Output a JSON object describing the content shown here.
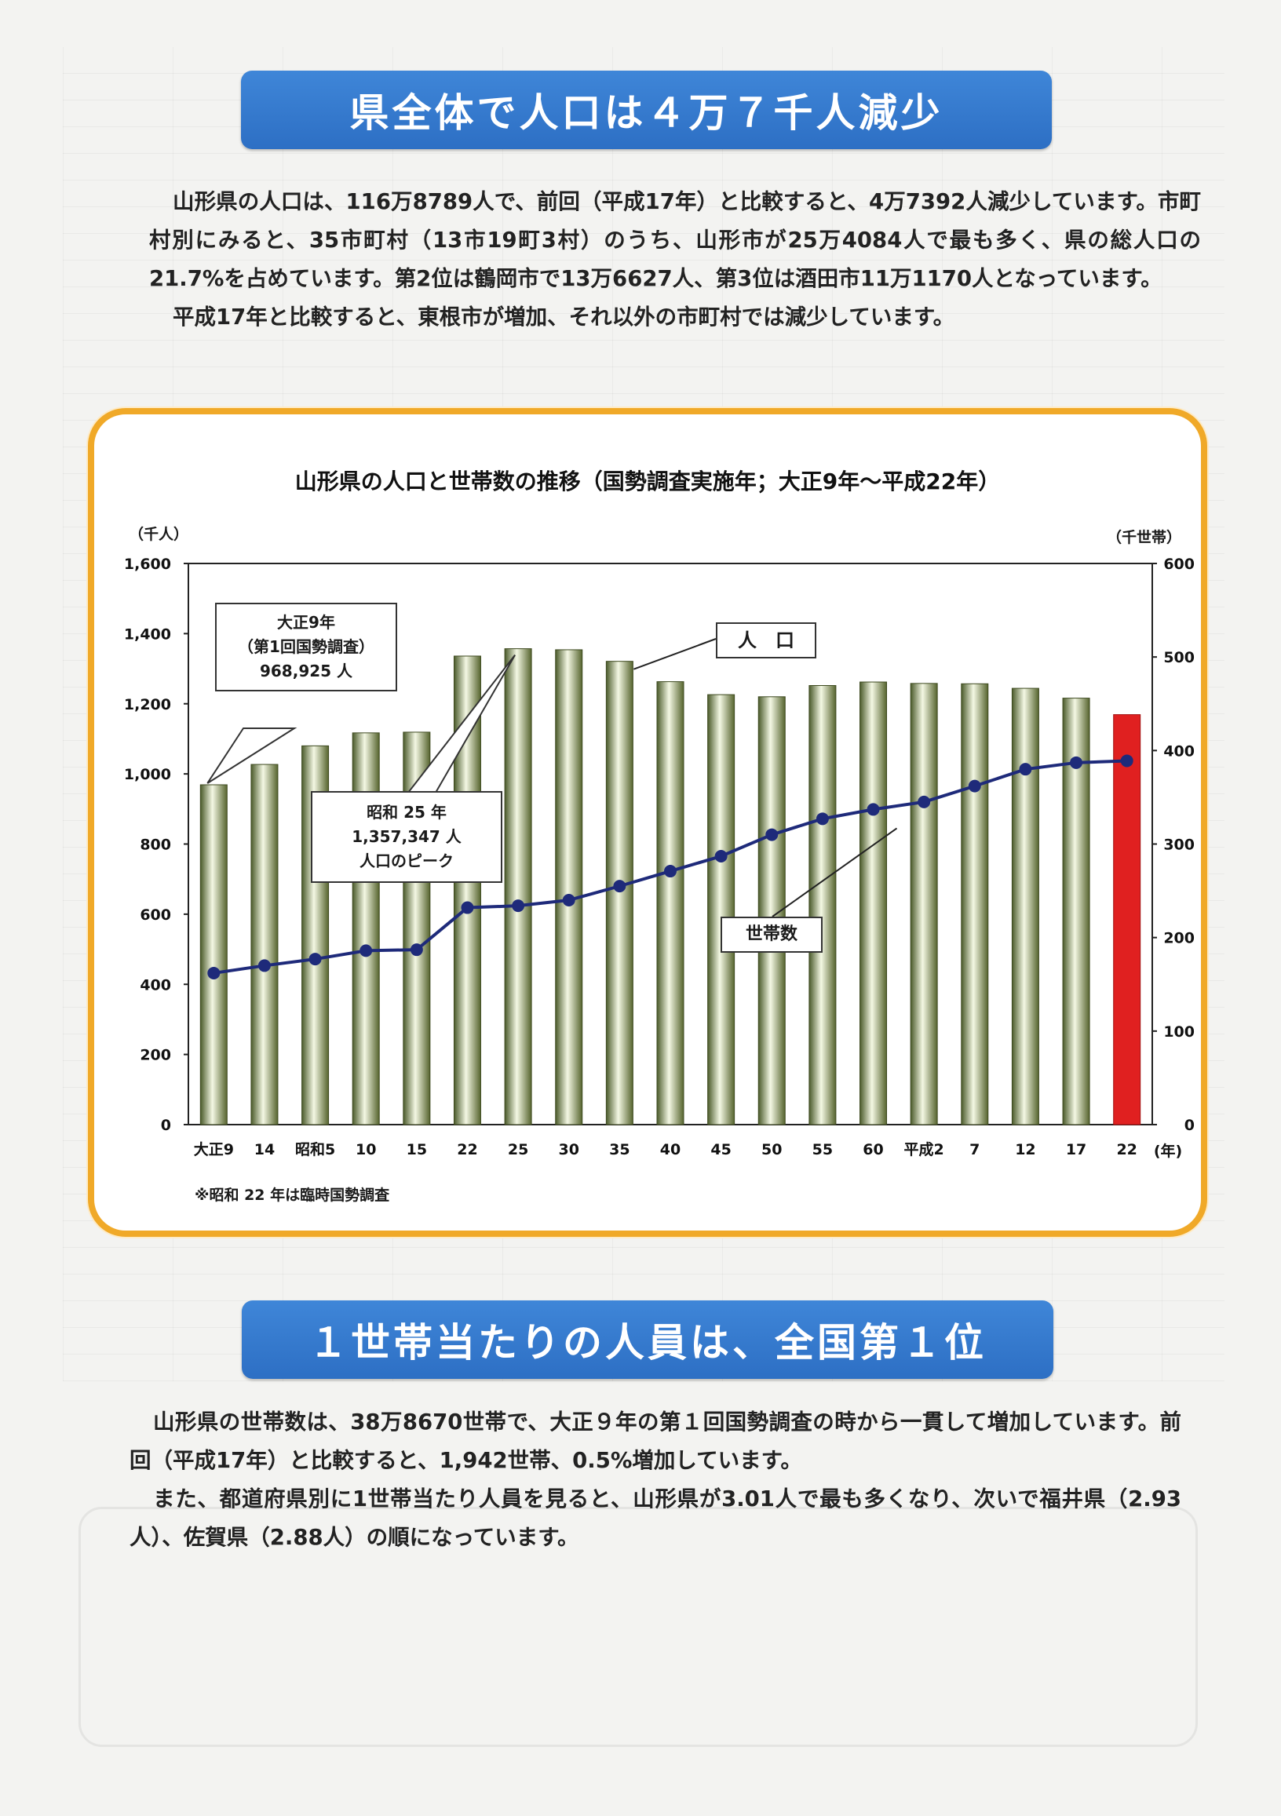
{
  "section1": {
    "heading": "県全体で人口は４万７千人減少",
    "paragraph1": "山形県の人口は、116万8789人で、前回（平成17年）と比較すると、4万7392人減少しています。市町村別にみると、35市町村（13市19町3村）のうち、山形市が25万4084人で最も多く、県の総人口の21.7%を占めています。第2位は鶴岡市で13万6627人、第3位は酒田市11万1170人となっています。",
    "paragraph2": "平成17年と比較すると、東根市が増加、それ以外の市町村では減少しています。"
  },
  "chart": {
    "title": "山形県の人口と世帯数の推移（国勢調査実施年；大正9年～平成22年）",
    "left_unit": "（千人）",
    "right_unit": "（千世帯）",
    "x_unit": "(年)",
    "note": "※昭和 22 年は臨時国勢調査",
    "callout_first": [
      "大正9年",
      "（第1回国勢調査）",
      "968,925 人"
    ],
    "callout_peak": [
      "昭和 25 年",
      "1,357,347 人",
      "人口のピーク"
    ],
    "label_population": "人　口",
    "label_households": "世帯数"
  },
  "chart_data": {
    "type": "bar",
    "categories": [
      "大正9",
      "14",
      "昭和5",
      "10",
      "15",
      "22",
      "25",
      "30",
      "35",
      "40",
      "45",
      "50",
      "55",
      "60",
      "平成2",
      "7",
      "12",
      "17",
      "22"
    ],
    "series": [
      {
        "name": "人口",
        "axis": "left",
        "type": "bar",
        "values": [
          969,
          1027,
          1080,
          1117,
          1119,
          1336,
          1357,
          1354,
          1321,
          1263,
          1226,
          1220,
          1252,
          1262,
          1258,
          1257,
          1244,
          1216,
          1169
        ]
      },
      {
        "name": "世帯数",
        "axis": "right",
        "type": "line",
        "values": [
          162,
          170,
          177,
          186,
          187,
          232,
          234,
          240,
          255,
          271,
          287,
          310,
          327,
          337,
          345,
          362,
          380,
          387,
          389
        ]
      }
    ],
    "ylim_left": [
      0,
      1600
    ],
    "ylim_right": [
      0,
      600
    ],
    "yticks_left": [
      0,
      200,
      400,
      600,
      800,
      1000,
      1200,
      1400,
      1600
    ],
    "yticks_right": [
      0,
      100,
      200,
      300,
      400,
      500,
      600
    ],
    "bar_color": "#6f7f4e",
    "highlight_color": "#e02020",
    "line_color": "#1e2a7a"
  },
  "section2": {
    "heading": "１世帯当たりの人員は、全国第１位",
    "paragraph1": "山形県の世帯数は、38万8670世帯で、大正９年の第１回国勢調査の時から一貫して増加しています。前回（平成17年）と比較すると、1,942世帯、0.5%増加しています。",
    "paragraph2": "また、都道府県別に1世帯当たり人員を見ると、山形県が3.01人で最も多くなり、次いで福井県（2.93人）、佐賀県（2.88人）の順になっています。"
  }
}
